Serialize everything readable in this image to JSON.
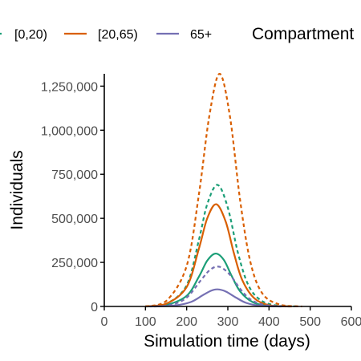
{
  "chart_data": {
    "type": "line",
    "title": "",
    "xlabel": "Simulation time (days)",
    "ylabel": "Individuals",
    "xlim": [
      0,
      600
    ],
    "ylim": [
      0,
      1320000
    ],
    "xticks": [
      {
        "value": 0,
        "label": "0"
      },
      {
        "value": 100,
        "label": "100"
      },
      {
        "value": 200,
        "label": "200"
      },
      {
        "value": 300,
        "label": "300"
      },
      {
        "value": 400,
        "label": "400"
      },
      {
        "value": 500,
        "label": "500"
      },
      {
        "value": 600,
        "label": "600"
      }
    ],
    "yticks": [
      {
        "value": 0,
        "label": "0"
      },
      {
        "value": 250000,
        "label": "250,000"
      },
      {
        "value": 500000,
        "label": "500,000"
      },
      {
        "value": 750000,
        "label": "750,000"
      },
      {
        "value": 1000000,
        "label": "1,000,000"
      },
      {
        "value": 1250000,
        "label": "1,250,000"
      }
    ],
    "grid": false,
    "legend": {
      "placement": "top",
      "groups": [
        {
          "name": "[0,20)",
          "color": "#1b9e77"
        },
        {
          "name": "[20,65)",
          "color": "#d95f02"
        },
        {
          "name": "65+",
          "color": "#7570b3"
        }
      ],
      "compartment_title": "Compartment"
    },
    "series": [
      {
        "group": "[0,20)",
        "style": "solid",
        "color": "#1b9e77",
        "x": [
          100,
          150,
          200,
          230,
          250,
          270,
          290,
          310,
          330,
          360,
          400,
          450
        ],
        "y": [
          0,
          8000,
          60000,
          170000,
          260000,
          300000,
          265000,
          170000,
          85000,
          25000,
          3000,
          0
        ]
      },
      {
        "group": "[0,20)",
        "style": "dashed",
        "color": "#1b9e77",
        "x": [
          100,
          150,
          200,
          230,
          250,
          275,
          300,
          325,
          350,
          380,
          420,
          470
        ],
        "y": [
          0,
          15000,
          120000,
          380000,
          580000,
          690000,
          560000,
          300000,
          120000,
          35000,
          5000,
          0
        ]
      },
      {
        "group": "[20,65)",
        "style": "solid",
        "color": "#d95f02",
        "x": [
          100,
          150,
          200,
          230,
          250,
          272,
          295,
          315,
          335,
          365,
          405,
          455
        ],
        "y": [
          0,
          15000,
          110000,
          330000,
          500000,
          580000,
          480000,
          300000,
          150000,
          45000,
          5000,
          0
        ]
      },
      {
        "group": "[20,65)",
        "style": "dashed",
        "color": "#d95f02",
        "x": [
          100,
          150,
          200,
          230,
          255,
          280,
          305,
          330,
          355,
          385,
          430,
          480
        ],
        "y": [
          0,
          30000,
          230000,
          640000,
          1080000,
          1320000,
          1080000,
          600000,
          250000,
          70000,
          8000,
          0
        ]
      },
      {
        "group": "65+",
        "style": "solid",
        "color": "#7570b3",
        "x": [
          120,
          170,
          210,
          240,
          260,
          275,
          295,
          320,
          345,
          380,
          430
        ],
        "y": [
          0,
          5000,
          25000,
          65000,
          90000,
          97000,
          85000,
          50000,
          20000,
          4000,
          0
        ]
      },
      {
        "group": "65+",
        "style": "dashed",
        "color": "#7570b3",
        "x": [
          110,
          160,
          200,
          235,
          258,
          280,
          305,
          330,
          355,
          390,
          440
        ],
        "y": [
          0,
          8000,
          50000,
          150000,
          210000,
          225000,
          180000,
          100000,
          40000,
          8000,
          0
        ]
      }
    ]
  }
}
